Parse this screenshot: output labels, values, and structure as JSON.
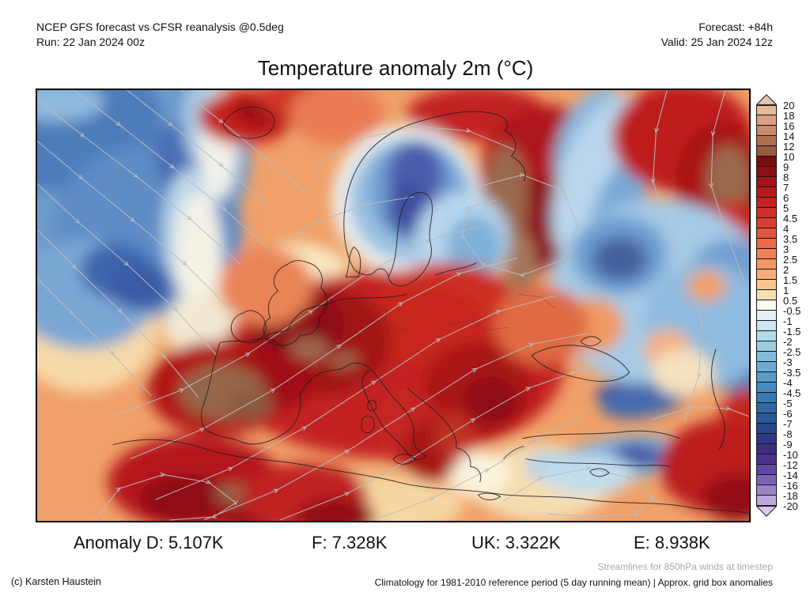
{
  "header": {
    "model_line": "NCEP GFS forecast vs CFSR reanalysis @0.5deg",
    "run_line": "Run: 22 Jan 2024 00z",
    "forecast_line": "Forecast: +84h",
    "valid_line": "Valid: 25 Jan 2024 12z"
  },
  "title": "Temperature anomaly 2m (°C)",
  "anomaly_summary": {
    "items": [
      {
        "text": "Anomaly D: 5.107K"
      },
      {
        "text": "F: 7.328K"
      },
      {
        "text": "UK: 3.322K"
      },
      {
        "text": "E: 8.938K"
      }
    ]
  },
  "colorbar": {
    "labels": [
      "20",
      "18",
      "16",
      "14",
      "12",
      "10",
      "9",
      "8",
      "7",
      "6",
      "5",
      "4.5",
      "4",
      "3.5",
      "3",
      "2.5",
      "2",
      "1.5",
      "1",
      "0.5",
      "-0.5",
      "-1",
      "-1.5",
      "-2",
      "-2.5",
      "-3",
      "-3.5",
      "-4",
      "-4.5",
      "-5",
      "-6",
      "-7",
      "-8",
      "-9",
      "-10",
      "-12",
      "-14",
      "-16",
      "-18",
      "-20"
    ],
    "colors": [
      "#e6b89c",
      "#dba086",
      "#c88a6c",
      "#b07050",
      "#9a5c3e",
      "#7a0c10",
      "#8e0f13",
      "#a31318",
      "#b81a1c",
      "#c62222",
      "#d02f29",
      "#d93f31",
      "#e2553e",
      "#e96b4b",
      "#ef815a",
      "#f49768",
      "#f7ab79",
      "#f9c48f",
      "#f6e0b2",
      "#fafaf0",
      "#e2f0f6",
      "#cde6f2",
      "#b5daec",
      "#9ccbe4",
      "#83bbdc",
      "#6cabd3",
      "#589bc9",
      "#468abf",
      "#3979b3",
      "#2f68a7",
      "#2a579b",
      "#28468e",
      "#2c3a84",
      "#3a2f80",
      "#4b3490",
      "#6148a3",
      "#7d63b5",
      "#9c83c8",
      "#bda9db"
    ],
    "over_color": "#e9c6ab",
    "under_color": "#d8cbee"
  },
  "footnotes": {
    "streamline_note": "Streamlines for 850hPa winds at timestep",
    "credit": "(c) Karsten Haustein",
    "climatology": "Climatology for 1981-2010 reference period (5 day running mean) | Approx. grid box anomalies"
  },
  "colors": {
    "map_border": "#000000",
    "base_warm": "#f0a169",
    "streamline_gray": "#b9bcc0",
    "coastline": "#1e1e1e",
    "note_gray": "#a9a9a9"
  }
}
